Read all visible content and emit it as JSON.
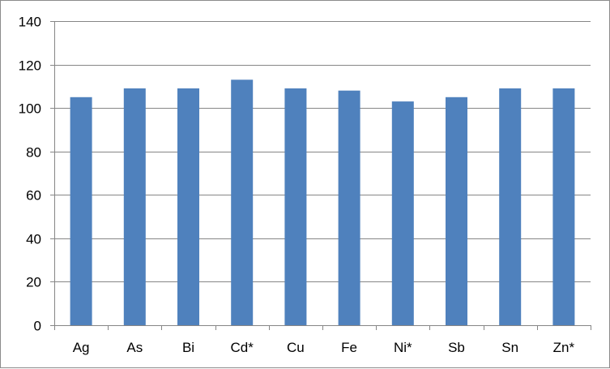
{
  "chart_data": {
    "type": "bar",
    "categories": [
      "Ag",
      "As",
      "Bi",
      "Cd*",
      "Cu",
      "Fe",
      "Ni*",
      "Sb",
      "Sn",
      "Zn*"
    ],
    "values": [
      105,
      109,
      109,
      113,
      109,
      108,
      103,
      105,
      109,
      109
    ],
    "ylim": [
      0,
      140
    ],
    "yticks": [
      0,
      20,
      40,
      60,
      80,
      100,
      120,
      140
    ],
    "grid": true,
    "legend": "none",
    "bar_color": "#4f81bd",
    "grid_color": "#868686",
    "axis_color": "#868686"
  }
}
